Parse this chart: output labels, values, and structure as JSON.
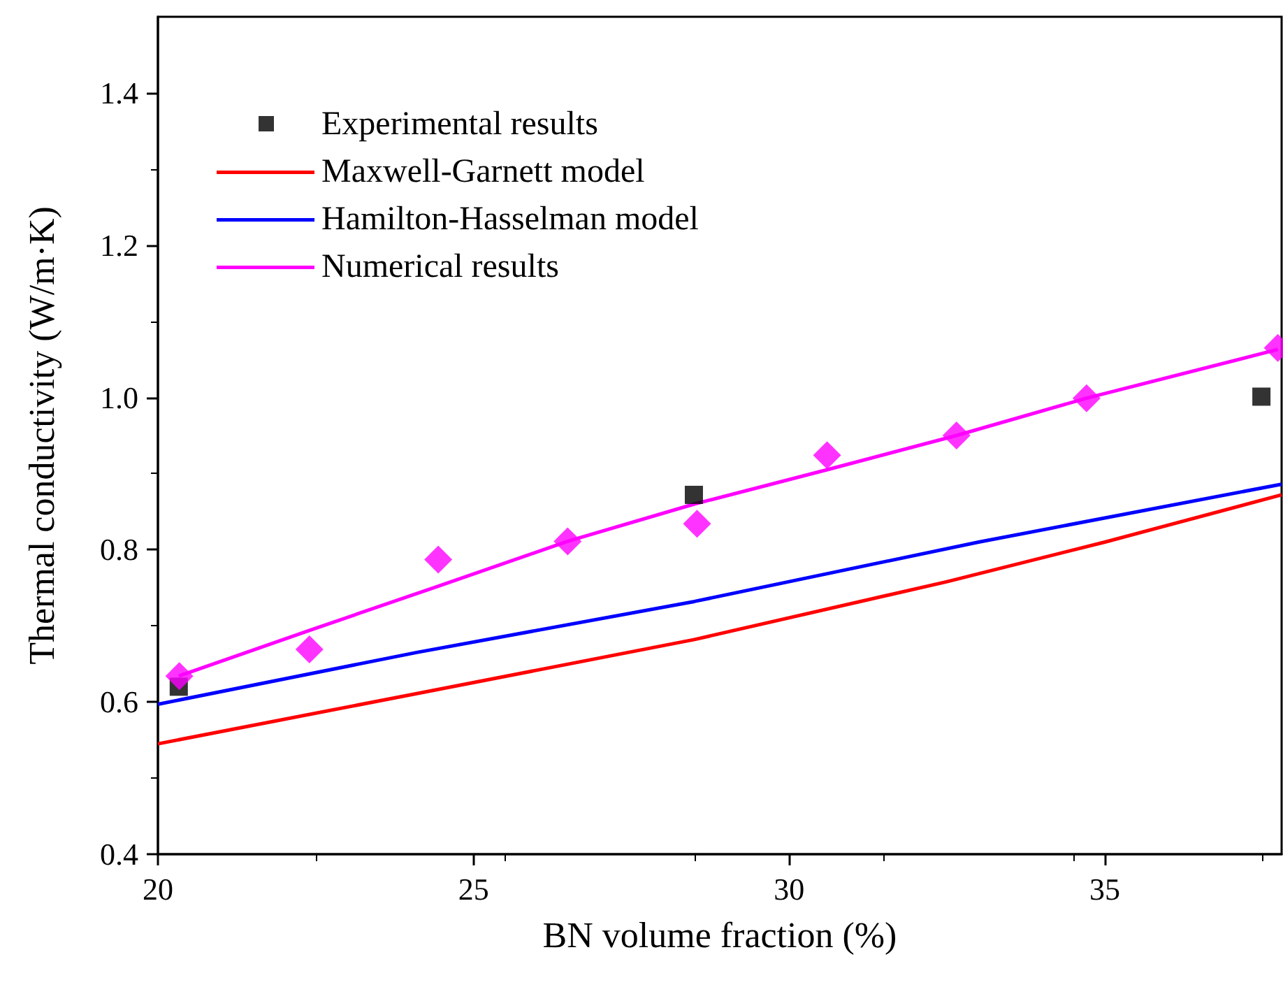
{
  "chart_data": {
    "type": "line",
    "xlabel": "BN volume fraction (%)",
    "ylabel": "Thermal conductivity (W/m·K)",
    "xlim": [
      20,
      37.8
    ],
    "xticks": [
      20,
      25,
      30,
      35
    ],
    "ylim": [
      0.4,
      1.5
    ],
    "yticks": [
      0.4,
      0.6,
      0.8,
      {
        "value": 1,
        "label": "1.0"
      },
      1.2,
      1.4
    ],
    "grid": false,
    "legend": "top left",
    "line_style": "solid",
    "series": [
      {
        "name": "Experimental results",
        "type": "scatter",
        "marker": "square",
        "color": "#000000",
        "x": [
          20.33,
          28.49,
          37.48
        ],
        "values": [
          0.62,
          0.872,
          1.001
        ]
      },
      {
        "name": "Maxwell-Garnett model",
        "type": "line",
        "color": "#ff0000",
        "x": [
          20,
          24.1,
          28.5,
          32.5,
          35,
          37.8
        ],
        "values": [
          0.545,
          0.611,
          0.682,
          0.758,
          0.81,
          0.872
        ]
      },
      {
        "name": "Hamilton-Hasselman model",
        "type": "line",
        "color": "#0000ff",
        "x": [
          20,
          24.1,
          28.5,
          33,
          37.8
        ],
        "values": [
          0.597,
          0.665,
          0.732,
          0.81,
          0.886
        ]
      },
      {
        "name": "Numerical results",
        "type": "line",
        "color": "#ff00ff",
        "x": [
          20.33,
          22.4,
          24.44,
          26.49,
          28.5,
          30.6,
          32.65,
          34.71,
          37.74
        ],
        "values": [
          0.634,
          0.694,
          0.752,
          0.811,
          0.86,
          0.905,
          0.95,
          0.999,
          1.063
        ]
      },
      {
        "type": "scatter",
        "marker": "diamond",
        "color": "#ff00ff",
        "x": [
          20.34,
          22.4,
          24.44,
          26.49,
          28.54,
          30.6,
          32.65,
          34.71,
          37.74
        ],
        "values": [
          0.634,
          0.669,
          0.787,
          0.811,
          0.834,
          0.924,
          0.95,
          0.999,
          1.065
        ]
      }
    ]
  }
}
